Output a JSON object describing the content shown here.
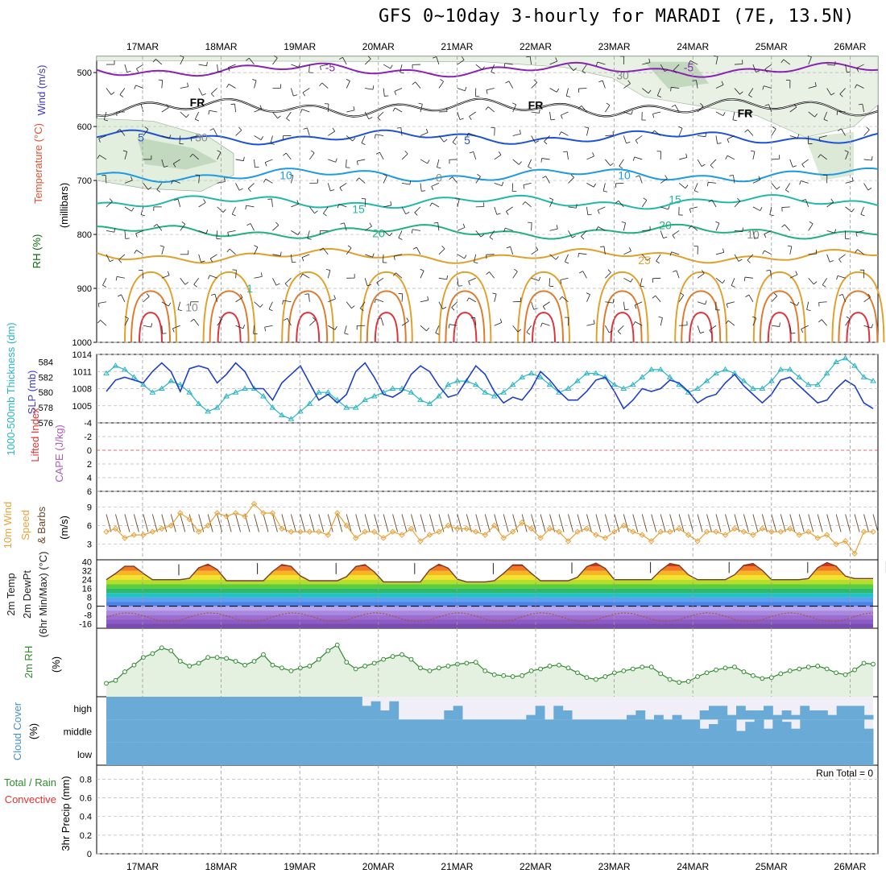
{
  "title": "GFS 0~10day 3-hourly for MARADI (7E, 13.5N)",
  "dates": [
    "17MAR",
    "18MAR",
    "19MAR",
    "20MAR",
    "21MAR",
    "22MAR",
    "23MAR",
    "24MAR",
    "25MAR",
    "26MAR"
  ],
  "run_total": "Run Total = 0",
  "colors": {
    "slp": "#1f3fc8",
    "thickness": "#2bb5c2",
    "wind_speed": "#e8a23a",
    "barb": "#6b4a2a",
    "rh": "#2e8b2e",
    "rh_fill": "#e4f0e0",
    "cloud": "#6aaad6",
    "cloud_clear": "#f0eef6",
    "temp_maxline": "#7a3b2a",
    "dewpoint": "#a05a3a",
    "lifted_index_zero": "#e83030"
  },
  "chart_data": [
    {
      "type": "contour",
      "panel": "upper-air",
      "ylabel_parts": [
        "RH (%)",
        "Temperature (°C)",
        "Wind (m/s)",
        "(millibars)"
      ],
      "y_ticks": [
        500,
        600,
        700,
        800,
        900,
        1000
      ],
      "ylim": [
        470,
        1000
      ],
      "y_scale": "pressure",
      "contour_labels": {
        "temperature": [
          "-5",
          "-5",
          "FR",
          "FR",
          "FR",
          "5",
          "5",
          "10",
          "10",
          "15",
          "15",
          "20",
          "20",
          "25",
          "1"
        ],
        "rh": [
          "30",
          "30",
          "0",
          "10",
          "10"
        ]
      },
      "isotherms": [
        {
          "label": "-5",
          "value": -5,
          "pressure_mb": 495
        },
        {
          "label": "FR",
          "value": 0,
          "pressure_mb": 565
        },
        {
          "label": "5",
          "value": 5,
          "pressure_mb": 620
        },
        {
          "label": "10",
          "value": 10,
          "pressure_mb": 690
        },
        {
          "label": "15",
          "value": 15,
          "pressure_mb": 740
        },
        {
          "label": "20",
          "value": 20,
          "pressure_mb": 795
        },
        {
          "label": "25",
          "value": 25,
          "pressure_mb": 840
        }
      ]
    },
    {
      "type": "line",
      "panel": "slp-thickness",
      "ylabel_parts": [
        "1000-500mb Thickness (dm)",
        "SLP (mb)"
      ],
      "left_ticks": [
        "584",
        "582",
        "580",
        "578",
        "576"
      ],
      "right_ticks": [
        "1014",
        "1011",
        "1008",
        "1005"
      ],
      "ylim_slp": [
        1002,
        1014
      ],
      "ylim_thickness": [
        576,
        585
      ],
      "series": [
        {
          "name": "SLP (mb)",
          "axis": "left",
          "values": [
            1007.5,
            1009.5,
            1010,
            1009.5,
            1009,
            1011,
            1012.5,
            1011,
            1007.5,
            1011.5,
            1012,
            1011.5,
            1009,
            1010.5,
            1012.5,
            1011,
            1008,
            1008,
            1006,
            1009,
            1010.5,
            1012,
            1009,
            1006,
            1007,
            1005.5,
            1007,
            1011,
            1012.5,
            1010,
            1007,
            1006.5,
            1007.5,
            1010.5,
            1012,
            1011,
            1008.5,
            1006.5,
            1007,
            1009.5,
            1012,
            1010.5,
            1007.5,
            1005.5,
            1006.5,
            1006,
            1008,
            1011,
            1009.5,
            1007.5,
            1006,
            1006,
            1007.5,
            1009.5,
            1010,
            1007.5,
            1004.5,
            1006,
            1008,
            1007.5,
            1008,
            1009.5,
            1009,
            1007.5,
            1005.5,
            1006.5,
            1007,
            1009,
            1010.5,
            1008.5,
            1007,
            1005.5,
            1007,
            1009.5,
            1010,
            1008.5,
            1007,
            1005.5,
            1006,
            1008,
            1009.5,
            1008.5,
            1005.5,
            1004.5
          ]
        },
        {
          "name": "1000-500mb Thickness (dm)",
          "axis": "right",
          "values": [
            582.5,
            583.5,
            583,
            582,
            581,
            580,
            580.5,
            581.5,
            581,
            580,
            578.5,
            577.5,
            578,
            579.5,
            580,
            580.5,
            580.5,
            579.5,
            578,
            577,
            576.5,
            577.5,
            578.5,
            580,
            580,
            579,
            578,
            578,
            579,
            579.5,
            580,
            580.5,
            580.5,
            580,
            579,
            578.5,
            579.5,
            581,
            581.5,
            581.5,
            581,
            580,
            579.5,
            580,
            581,
            582,
            582.5,
            582,
            581,
            580,
            580.5,
            581.5,
            582.5,
            582.5,
            582,
            581,
            580.5,
            581,
            582,
            583,
            583,
            582,
            581,
            580,
            580.5,
            581.5,
            582.5,
            583,
            582.5,
            581.5,
            580.5,
            580.5,
            581.5,
            583,
            583,
            582,
            581,
            581,
            582.5,
            584,
            584.5,
            583.5,
            582,
            581.5
          ]
        }
      ]
    },
    {
      "type": "line",
      "panel": "cape-lifted-index",
      "ylabel_parts": [
        "CAPE (J/kg)",
        "Lifted Index"
      ],
      "y_ticks": [
        "-4",
        "-2",
        "0",
        "2",
        "4",
        "6"
      ],
      "ylim": [
        -4,
        6
      ],
      "series": [
        {
          "name": "Lifted Index",
          "values": []
        }
      ]
    },
    {
      "type": "line",
      "panel": "wind-10m",
      "ylabel_parts": [
        "10m Wind",
        "Speed",
        "& Barbs",
        "(m/s)"
      ],
      "y_ticks": [
        "9",
        "6",
        "3"
      ],
      "ylim": [
        0.5,
        11.5
      ],
      "series": [
        {
          "name": "10m Wind Speed",
          "values": [
            5,
            5.5,
            4,
            4.5,
            4.5,
            5,
            5.5,
            6,
            8,
            7,
            5,
            6,
            8,
            7.5,
            8,
            7.5,
            9.5,
            8,
            8,
            5.5,
            5,
            5,
            5,
            5,
            4.5,
            8,
            6,
            4,
            5,
            5,
            4,
            5,
            4.5,
            5.5,
            3.5,
            4.5,
            5,
            6,
            5.5,
            5.5,
            5,
            4.5,
            6,
            4,
            5,
            6.5,
            5.5,
            4,
            5.5,
            5,
            3.5,
            5,
            5.5,
            4.5,
            4,
            5,
            6,
            5,
            4.5,
            3.5,
            5,
            5,
            5.5,
            4.5,
            3.5,
            5,
            5,
            4.5,
            5.5,
            5,
            4.5,
            5.5,
            5,
            5,
            5.5,
            4.5,
            5,
            4,
            4.5,
            3,
            3.5,
            1.5,
            5,
            5
          ]
        }
      ]
    },
    {
      "type": "area",
      "panel": "temperature-2m",
      "ylabel_parts": [
        "2m Temp",
        "2m DewPt",
        "(6hr Min/Max) (°C)"
      ],
      "y_ticks": [
        "40",
        "32",
        "24",
        "16",
        "8",
        "0",
        "-8",
        "-16"
      ],
      "ylim": [
        -20,
        42
      ],
      "daily_max_temp": [
        37,
        38,
        38,
        38,
        38,
        38.5,
        39,
        39,
        39,
        39.5
      ],
      "daily_min_temp": [
        24,
        23,
        23,
        22,
        22,
        23,
        24,
        24,
        24,
        25
      ],
      "dewpoint_range": [
        -14,
        -6
      ]
    },
    {
      "type": "area",
      "panel": "rh-2m",
      "ylabel_parts": [
        "2m RH",
        "(%)"
      ],
      "ylim": [
        0,
        100
      ],
      "series": [
        {
          "name": "2m RH",
          "values": [
            14,
            17,
            26,
            33,
            41,
            45,
            51,
            48,
            37,
            32,
            35,
            41,
            41,
            40,
            37,
            33,
            37,
            44,
            33,
            30,
            27,
            30,
            32,
            39,
            48,
            54,
            36,
            29,
            32,
            35,
            39,
            42,
            44,
            39,
            30,
            27,
            30,
            32,
            34,
            35,
            36,
            27,
            23,
            22,
            21,
            22,
            27,
            29,
            32,
            33,
            30,
            25,
            20,
            18,
            21,
            25,
            27,
            29,
            31,
            31,
            24,
            18,
            15,
            16,
            21,
            25,
            28,
            30,
            31,
            26,
            22,
            19,
            20,
            24,
            27,
            29,
            31,
            32,
            29,
            25,
            23,
            28,
            35,
            34
          ]
        }
      ]
    },
    {
      "type": "heatmap",
      "panel": "cloud-cover",
      "ylabel_parts": [
        "Cloud Cover",
        "(%)"
      ],
      "levels": [
        "high",
        "middle",
        "low"
      ],
      "high_cover_pct": [
        100,
        100,
        100,
        100,
        100,
        100,
        100,
        100,
        100,
        100,
        100,
        100,
        100,
        100,
        100,
        100,
        100,
        100,
        100,
        100,
        100,
        100,
        100,
        100,
        100,
        100,
        100,
        100,
        60,
        80,
        40,
        80,
        0,
        0,
        0,
        0,
        0,
        40,
        60,
        0,
        0,
        0,
        0,
        0,
        0,
        0,
        20,
        60,
        0,
        60,
        40,
        0,
        0,
        0,
        0,
        0,
        0,
        20,
        40,
        0,
        20,
        0,
        20,
        0,
        0,
        40,
        60,
        60,
        20,
        60,
        40,
        40,
        60,
        20,
        40,
        20,
        60,
        40,
        40,
        20,
        60,
        60,
        60,
        20
      ],
      "middle_cover_pct": [
        100,
        100,
        100,
        100,
        100,
        100,
        100,
        100,
        100,
        100,
        100,
        100,
        100,
        100,
        100,
        100,
        100,
        100,
        100,
        100,
        100,
        100,
        100,
        100,
        100,
        100,
        100,
        100,
        100,
        100,
        100,
        100,
        100,
        100,
        100,
        100,
        100,
        100,
        100,
        100,
        100,
        100,
        100,
        100,
        100,
        100,
        100,
        100,
        100,
        100,
        100,
        100,
        100,
        100,
        100,
        100,
        100,
        100,
        100,
        100,
        100,
        100,
        100,
        100,
        100,
        60,
        80,
        100,
        100,
        50,
        90,
        100,
        60,
        100,
        90,
        60,
        100,
        100,
        100,
        100,
        100,
        100,
        100,
        60
      ],
      "low_cover_pct": [
        100,
        100,
        100,
        100,
        100,
        100,
        100,
        100,
        100,
        100,
        100,
        100,
        100,
        100,
        100,
        100,
        100,
        100,
        100,
        100,
        100,
        100,
        100,
        100,
        100,
        100,
        100,
        100,
        100,
        100,
        100,
        100,
        100,
        100,
        100,
        100,
        100,
        100,
        100,
        100,
        100,
        100,
        100,
        100,
        100,
        100,
        100,
        100,
        100,
        100,
        100,
        100,
        100,
        100,
        100,
        100,
        100,
        100,
        100,
        100,
        100,
        100,
        100,
        100,
        100,
        100,
        100,
        100,
        100,
        100,
        100,
        100,
        100,
        100,
        100,
        100,
        100,
        100,
        100,
        100,
        100,
        100,
        100,
        100
      ]
    },
    {
      "type": "bar",
      "panel": "precipitation",
      "ylabel_parts": [
        "3hr Precip (mm)",
        "Total / Rain",
        "Convective"
      ],
      "y_ticks": [
        "0.8",
        "0.6",
        "0.4",
        "0.2",
        "0"
      ],
      "ylim": [
        0,
        0.95
      ],
      "series": [
        {
          "name": "3hr Precip",
          "values": []
        }
      ]
    }
  ]
}
